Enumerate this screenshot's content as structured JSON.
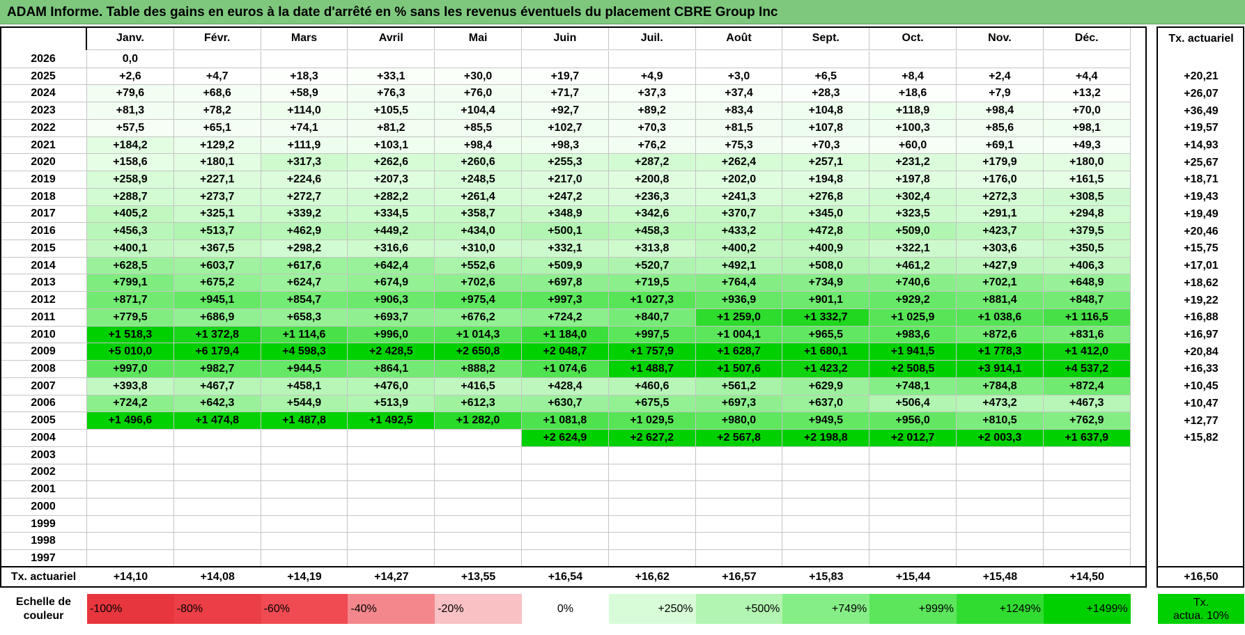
{
  "title": "ADAM Informe. Table des gains en euros à la date d'arrêté en % sans les revenus éventuels du placement CBRE Group Inc",
  "months": [
    "Janv.",
    "Févr.",
    "Mars",
    "Avril",
    "Mai",
    "Juin",
    "Juil.",
    "Août",
    "Sept.",
    "Oct.",
    "Nov.",
    "Déc."
  ],
  "rate_header": "Tx. actuariel",
  "rows": [
    {
      "year": "2026",
      "values": [
        "0,0",
        "",
        "",
        "",
        "",
        "",
        "",
        "",
        "",
        "",
        "",
        ""
      ],
      "rate": ""
    },
    {
      "year": "2025",
      "values": [
        "+2,6",
        "+4,7",
        "+18,3",
        "+33,1",
        "+30,0",
        "+19,7",
        "+4,9",
        "+3,0",
        "+6,5",
        "+8,4",
        "+2,4",
        "+4,4"
      ],
      "rate": "+20,21"
    },
    {
      "year": "2024",
      "values": [
        "+79,6",
        "+68,6",
        "+58,9",
        "+76,3",
        "+76,0",
        "+71,7",
        "+37,3",
        "+37,4",
        "+28,3",
        "+18,6",
        "+7,9",
        "+13,2"
      ],
      "rate": "+26,07"
    },
    {
      "year": "2023",
      "values": [
        "+81,3",
        "+78,2",
        "+114,0",
        "+105,5",
        "+104,4",
        "+92,7",
        "+89,2",
        "+83,4",
        "+104,8",
        "+118,9",
        "+98,4",
        "+70,0"
      ],
      "rate": "+36,49"
    },
    {
      "year": "2022",
      "values": [
        "+57,5",
        "+65,1",
        "+74,1",
        "+81,2",
        "+85,5",
        "+102,7",
        "+70,3",
        "+81,5",
        "+107,8",
        "+100,3",
        "+85,6",
        "+98,1"
      ],
      "rate": "+19,57"
    },
    {
      "year": "2021",
      "values": [
        "+184,2",
        "+129,2",
        "+111,9",
        "+103,1",
        "+98,4",
        "+98,3",
        "+76,2",
        "+75,3",
        "+70,3",
        "+60,0",
        "+69,1",
        "+49,3"
      ],
      "rate": "+14,93"
    },
    {
      "year": "2020",
      "values": [
        "+158,6",
        "+180,1",
        "+317,3",
        "+262,6",
        "+260,6",
        "+255,3",
        "+287,2",
        "+262,4",
        "+257,1",
        "+231,2",
        "+179,9",
        "+180,0"
      ],
      "rate": "+25,67"
    },
    {
      "year": "2019",
      "values": [
        "+258,9",
        "+227,1",
        "+224,6",
        "+207,3",
        "+248,5",
        "+217,0",
        "+200,8",
        "+202,0",
        "+194,8",
        "+197,8",
        "+176,0",
        "+161,5"
      ],
      "rate": "+18,71"
    },
    {
      "year": "2018",
      "values": [
        "+288,7",
        "+273,7",
        "+272,7",
        "+282,2",
        "+261,4",
        "+247,2",
        "+236,3",
        "+241,3",
        "+276,8",
        "+302,4",
        "+272,3",
        "+308,5"
      ],
      "rate": "+19,43"
    },
    {
      "year": "2017",
      "values": [
        "+405,2",
        "+325,1",
        "+339,2",
        "+334,5",
        "+358,7",
        "+348,9",
        "+342,6",
        "+370,7",
        "+345,0",
        "+323,5",
        "+291,1",
        "+294,8"
      ],
      "rate": "+19,49"
    },
    {
      "year": "2016",
      "values": [
        "+456,3",
        "+513,7",
        "+462,9",
        "+449,2",
        "+434,0",
        "+500,1",
        "+458,3",
        "+433,2",
        "+472,8",
        "+509,0",
        "+423,7",
        "+379,5"
      ],
      "rate": "+20,46"
    },
    {
      "year": "2015",
      "values": [
        "+400,1",
        "+367,5",
        "+298,2",
        "+316,6",
        "+310,0",
        "+332,1",
        "+313,8",
        "+400,2",
        "+400,9",
        "+322,1",
        "+303,6",
        "+350,5"
      ],
      "rate": "+15,75"
    },
    {
      "year": "2014",
      "values": [
        "+628,5",
        "+603,7",
        "+617,6",
        "+642,4",
        "+552,6",
        "+509,9",
        "+520,7",
        "+492,1",
        "+508,0",
        "+461,2",
        "+427,9",
        "+406,3"
      ],
      "rate": "+17,01"
    },
    {
      "year": "2013",
      "values": [
        "+799,1",
        "+675,2",
        "+624,7",
        "+674,9",
        "+702,6",
        "+697,8",
        "+719,5",
        "+764,4",
        "+734,9",
        "+740,6",
        "+702,1",
        "+648,9"
      ],
      "rate": "+18,62"
    },
    {
      "year": "2012",
      "values": [
        "+871,7",
        "+945,1",
        "+854,7",
        "+906,3",
        "+975,4",
        "+997,3",
        "+1 027,3",
        "+936,9",
        "+901,1",
        "+929,2",
        "+881,4",
        "+848,7"
      ],
      "rate": "+19,22"
    },
    {
      "year": "2011",
      "values": [
        "+779,5",
        "+686,9",
        "+658,3",
        "+693,7",
        "+676,2",
        "+724,2",
        "+840,7",
        "+1 259,0",
        "+1 332,7",
        "+1 025,9",
        "+1 038,6",
        "+1 116,5"
      ],
      "rate": "+16,88"
    },
    {
      "year": "2010",
      "values": [
        "+1 518,3",
        "+1 372,8",
        "+1 114,6",
        "+996,0",
        "+1 014,3",
        "+1 184,0",
        "+997,5",
        "+1 004,1",
        "+965,5",
        "+983,6",
        "+872,6",
        "+831,6"
      ],
      "rate": "+16,97"
    },
    {
      "year": "2009",
      "values": [
        "+5 010,0",
        "+6 179,4",
        "+4 598,3",
        "+2 428,5",
        "+2 650,8",
        "+2 048,7",
        "+1 757,9",
        "+1 628,7",
        "+1 680,1",
        "+1 941,5",
        "+1 778,3",
        "+1 412,0"
      ],
      "rate": "+20,84"
    },
    {
      "year": "2008",
      "values": [
        "+997,0",
        "+982,7",
        "+944,5",
        "+864,1",
        "+888,2",
        "+1 074,6",
        "+1 488,7",
        "+1 507,6",
        "+1 423,2",
        "+2 508,5",
        "+3 914,1",
        "+4 537,2"
      ],
      "rate": "+16,33"
    },
    {
      "year": "2007",
      "values": [
        "+393,8",
        "+467,7",
        "+458,1",
        "+476,0",
        "+416,5",
        "+428,4",
        "+460,6",
        "+561,2",
        "+629,9",
        "+748,1",
        "+784,8",
        "+872,4"
      ],
      "rate": "+10,45"
    },
    {
      "year": "2006",
      "values": [
        "+724,2",
        "+642,3",
        "+544,9",
        "+513,9",
        "+612,3",
        "+630,7",
        "+675,5",
        "+697,3",
        "+637,0",
        "+506,4",
        "+473,2",
        "+467,3"
      ],
      "rate": "+10,47"
    },
    {
      "year": "2005",
      "values": [
        "+1 496,6",
        "+1 474,8",
        "+1 487,8",
        "+1 492,5",
        "+1 282,0",
        "+1 081,8",
        "+1 029,5",
        "+980,0",
        "+949,5",
        "+956,0",
        "+810,5",
        "+762,9"
      ],
      "rate": "+12,77"
    },
    {
      "year": "2004",
      "values": [
        "",
        "",
        "",
        "",
        "",
        "+2 624,9",
        "+2 627,2",
        "+2 567,8",
        "+2 198,8",
        "+2 012,7",
        "+2 003,3",
        "+1 637,9"
      ],
      "rate": "+15,82"
    },
    {
      "year": "2003",
      "values": [
        "",
        "",
        "",
        "",
        "",
        "",
        "",
        "",
        "",
        "",
        "",
        ""
      ],
      "rate": ""
    },
    {
      "year": "2002",
      "values": [
        "",
        "",
        "",
        "",
        "",
        "",
        "",
        "",
        "",
        "",
        "",
        ""
      ],
      "rate": ""
    },
    {
      "year": "2001",
      "values": [
        "",
        "",
        "",
        "",
        "",
        "",
        "",
        "",
        "",
        "",
        "",
        ""
      ],
      "rate": ""
    },
    {
      "year": "2000",
      "values": [
        "",
        "",
        "",
        "",
        "",
        "",
        "",
        "",
        "",
        "",
        "",
        ""
      ],
      "rate": ""
    },
    {
      "year": "1999",
      "values": [
        "",
        "",
        "",
        "",
        "",
        "",
        "",
        "",
        "",
        "",
        "",
        ""
      ],
      "rate": ""
    },
    {
      "year": "1998",
      "values": [
        "",
        "",
        "",
        "",
        "",
        "",
        "",
        "",
        "",
        "",
        "",
        ""
      ],
      "rate": ""
    },
    {
      "year": "1997",
      "values": [
        "",
        "",
        "",
        "",
        "",
        "",
        "",
        "",
        "",
        "",
        "",
        ""
      ],
      "rate": ""
    }
  ],
  "footer": {
    "label": "Tx. actuariel",
    "values": [
      "+14,10",
      "+14,08",
      "+14,19",
      "+14,27",
      "+13,55",
      "+16,54",
      "+16,62",
      "+16,57",
      "+15,83",
      "+15,44",
      "+15,48",
      "+14,50"
    ],
    "rate": "+16,50"
  },
  "scale": {
    "label_line1": "Echelle de",
    "label_line2": "couleur",
    "items": [
      {
        "text": "-100%",
        "color": "#e8363e",
        "align": "left"
      },
      {
        "text": "-80%",
        "color": "#ec3e46",
        "align": "left"
      },
      {
        "text": "-60%",
        "color": "#f04a52",
        "align": "left"
      },
      {
        "text": "-40%",
        "color": "#f4878c",
        "align": "left"
      },
      {
        "text": "-20%",
        "color": "#f9c1c4",
        "align": "left"
      },
      {
        "text": "0%",
        "color": "#ffffff",
        "align": "center"
      },
      {
        "text": "+250%",
        "color": "#d8fcd8",
        "align": "right"
      },
      {
        "text": "+500%",
        "color": "#b2f5b2",
        "align": "right"
      },
      {
        "text": "+749%",
        "color": "#86ee86",
        "align": "right"
      },
      {
        "text": "+999%",
        "color": "#5ce65c",
        "align": "right"
      },
      {
        "text": "+1249%",
        "color": "#30dc30",
        "align": "right"
      },
      {
        "text": "+1499%",
        "color": "#00d000",
        "align": "right"
      }
    ],
    "rate_line1": "Tx.",
    "rate_line2": "actua. 10%",
    "rate_color": "#00d000"
  }
}
